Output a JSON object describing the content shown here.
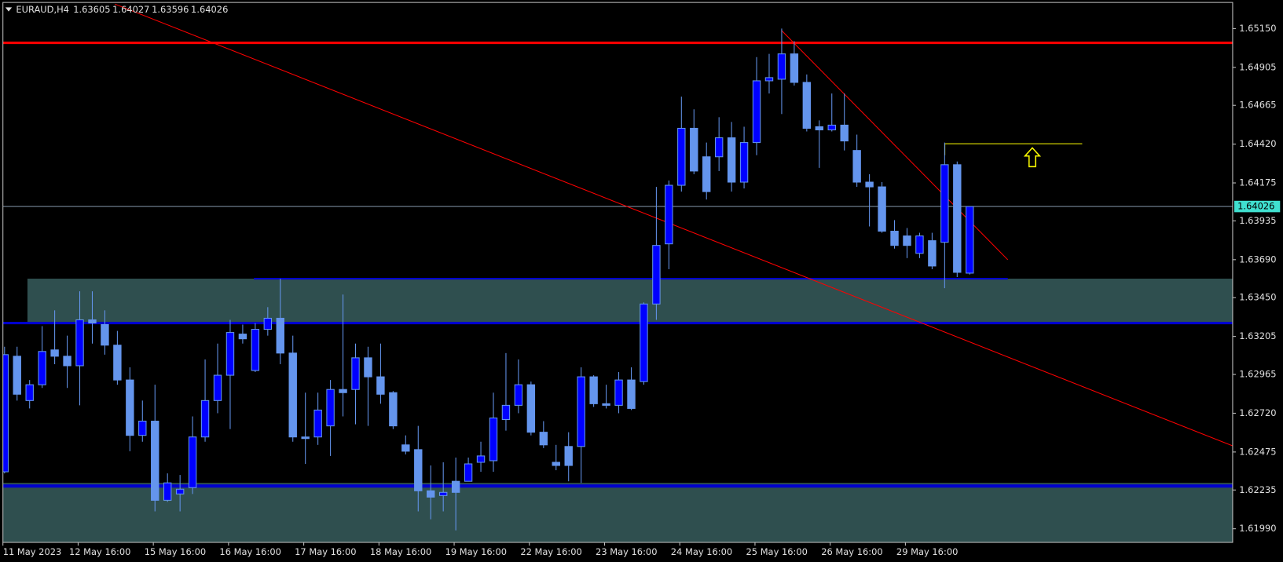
{
  "chart_data": {
    "type": "candlestick",
    "symbol": "EURAUD,H4",
    "candles": [
      [
        1.6235,
        1.6314,
        1.6234,
        1.6309
      ],
      [
        1.6308,
        1.6314,
        1.628,
        1.6284
      ],
      [
        1.628,
        1.6293,
        1.6275,
        1.629
      ],
      [
        1.629,
        1.6327,
        1.6288,
        1.6311
      ],
      [
        1.6312,
        1.6337,
        1.6303,
        1.6308
      ],
      [
        1.6308,
        1.6321,
        1.6288,
        1.6302
      ],
      [
        1.6302,
        1.6349,
        1.6277,
        1.6331
      ],
      [
        1.6331,
        1.6349,
        1.6316,
        1.6329
      ],
      [
        1.6328,
        1.6337,
        1.6309,
        1.6315
      ],
      [
        1.6315,
        1.6324,
        1.629,
        1.6293
      ],
      [
        1.6293,
        1.6301,
        1.6248,
        1.6258
      ],
      [
        1.6258,
        1.628,
        1.6254,
        1.6267
      ],
      [
        1.6267,
        1.629,
        1.621,
        1.6217
      ],
      [
        1.6217,
        1.6234,
        1.6216,
        1.6228
      ],
      [
        1.6221,
        1.6233,
        1.621,
        1.6224
      ],
      [
        1.6225,
        1.627,
        1.6221,
        1.6257
      ],
      [
        1.6257,
        1.6306,
        1.6254,
        1.628
      ],
      [
        1.628,
        1.6316,
        1.6272,
        1.6296
      ],
      [
        1.6296,
        1.6331,
        1.6262,
        1.6323
      ],
      [
        1.6322,
        1.6328,
        1.6316,
        1.6319
      ],
      [
        1.6299,
        1.6329,
        1.6298,
        1.6325
      ],
      [
        1.6325,
        1.6339,
        1.6321,
        1.6332
      ],
      [
        1.6332,
        1.6357,
        1.6303,
        1.631
      ],
      [
        1.631,
        1.6321,
        1.6254,
        1.6257
      ],
      [
        1.6257,
        1.6285,
        1.624,
        1.6256
      ],
      [
        1.6257,
        1.6285,
        1.6252,
        1.6274
      ],
      [
        1.6264,
        1.6293,
        1.6245,
        1.6287
      ],
      [
        1.6287,
        1.6347,
        1.627,
        1.6285
      ],
      [
        1.6287,
        1.6316,
        1.6265,
        1.6307
      ],
      [
        1.6307,
        1.6314,
        1.6264,
        1.6295
      ],
      [
        1.6295,
        1.6316,
        1.6278,
        1.6284
      ],
      [
        1.6285,
        1.6286,
        1.6262,
        1.6264
      ],
      [
        1.6252,
        1.6258,
        1.6246,
        1.6248
      ],
      [
        1.6249,
        1.6264,
        1.621,
        1.6223
      ],
      [
        1.6223,
        1.6239,
        1.6205,
        1.6219
      ],
      [
        1.622,
        1.6241,
        1.621,
        1.6222
      ],
      [
        1.6229,
        1.6244,
        1.6198,
        1.6222
      ],
      [
        1.6229,
        1.6244,
        1.6229,
        1.624
      ],
      [
        1.6241,
        1.6254,
        1.6235,
        1.6245
      ],
      [
        1.6242,
        1.6285,
        1.6235,
        1.6269
      ],
      [
        1.6268,
        1.631,
        1.6261,
        1.6277
      ],
      [
        1.6277,
        1.6306,
        1.6272,
        1.629
      ],
      [
        1.629,
        1.6292,
        1.6258,
        1.626
      ],
      [
        1.626,
        1.6267,
        1.625,
        1.6252
      ],
      [
        1.6241,
        1.6252,
        1.6236,
        1.6239
      ],
      [
        1.6251,
        1.626,
        1.6229,
        1.6239
      ],
      [
        1.6251,
        1.6301,
        1.6228,
        1.6295
      ],
      [
        1.6295,
        1.6296,
        1.6276,
        1.6278
      ],
      [
        1.6278,
        1.629,
        1.6275,
        1.6277
      ],
      [
        1.6277,
        1.6298,
        1.6272,
        1.6293
      ],
      [
        1.6293,
        1.6301,
        1.6274,
        1.6275
      ],
      [
        1.6292,
        1.6342,
        1.629,
        1.6341
      ],
      [
        1.6341,
        1.6415,
        1.6331,
        1.6378
      ],
      [
        1.6379,
        1.6419,
        1.6363,
        1.6416
      ],
      [
        1.6416,
        1.6472,
        1.6412,
        1.6452
      ],
      [
        1.6452,
        1.6464,
        1.6423,
        1.6425
      ],
      [
        1.6434,
        1.6443,
        1.6407,
        1.6412
      ],
      [
        1.6434,
        1.6459,
        1.6425,
        1.6446
      ],
      [
        1.6446,
        1.6456,
        1.6412,
        1.6418
      ],
      [
        1.6418,
        1.6453,
        1.6414,
        1.6443
      ],
      [
        1.6443,
        1.6497,
        1.6435,
        1.6482
      ],
      [
        1.6482,
        1.6499,
        1.6474,
        1.6484
      ],
      [
        1.6483,
        1.6515,
        1.6461,
        1.6499
      ],
      [
        1.6499,
        1.6507,
        1.6479,
        1.6481
      ],
      [
        1.6481,
        1.6486,
        1.645,
        1.6452
      ],
      [
        1.6453,
        1.6457,
        1.6427,
        1.6451
      ],
      [
        1.6451,
        1.6474,
        1.645,
        1.6454
      ],
      [
        1.6454,
        1.6474,
        1.6438,
        1.6444
      ],
      [
        1.6438,
        1.6448,
        1.6415,
        1.6418
      ],
      [
        1.6418,
        1.6423,
        1.639,
        1.6415
      ],
      [
        1.6415,
        1.6418,
        1.6386,
        1.6387
      ],
      [
        1.6387,
        1.6394,
        1.6376,
        1.6378
      ],
      [
        1.6384,
        1.6389,
        1.637,
        1.6378
      ],
      [
        1.6373,
        1.6386,
        1.637,
        1.6384
      ],
      [
        1.6381,
        1.6386,
        1.6363,
        1.6365
      ],
      [
        1.638,
        1.6443,
        1.6351,
        1.6429
      ],
      [
        1.6429,
        1.6431,
        1.6358,
        1.6361
      ],
      [
        1.63605,
        1.64027,
        1.63596,
        1.64026
      ]
    ],
    "categories": [
      "11 May 2023",
      null,
      null,
      null,
      null,
      null,
      "12 May 16:00",
      null,
      null,
      null,
      null,
      null,
      "15 May 16:00",
      null,
      null,
      null,
      null,
      null,
      "16 May 16:00",
      null,
      null,
      null,
      null,
      null,
      "17 May 16:00",
      null,
      null,
      null,
      null,
      null,
      "18 May 16:00",
      null,
      null,
      null,
      null,
      null,
      "19 May 16:00",
      null,
      null,
      null,
      null,
      null,
      "22 May 16:00",
      null,
      null,
      null,
      null,
      null,
      "23 May 16:00",
      null,
      null,
      null,
      null,
      null,
      "24 May 16:00",
      null,
      null,
      null,
      null,
      null,
      "25 May 16:00",
      null,
      null,
      null,
      null,
      null,
      "26 May 16:00",
      null,
      null,
      null,
      null,
      null,
      "29 May 16:00",
      null,
      null,
      null,
      null,
      null
    ],
    "ylim": [
      1.61904,
      1.65315
    ],
    "yticks": [
      {
        "value": 1.6515,
        "label": "1.65150"
      },
      {
        "value": 1.64905,
        "label": "1.64905"
      },
      {
        "value": 1.64665,
        "label": "1.64665"
      },
      {
        "value": 1.6442,
        "label": "1.64420"
      },
      {
        "value": 1.64175,
        "label": "1.64175"
      },
      {
        "value": 1.63935,
        "label": "1.63935"
      },
      {
        "value": 1.6369,
        "label": "1.63690"
      },
      {
        "value": 1.6345,
        "label": "1.63450"
      },
      {
        "value": 1.63205,
        "label": "1.63205"
      },
      {
        "value": 1.62965,
        "label": "1.62965"
      },
      {
        "value": 1.6272,
        "label": "1.62720"
      },
      {
        "value": 1.62475,
        "label": "1.62475"
      },
      {
        "value": 1.62235,
        "label": "1.62235"
      },
      {
        "value": 1.6199,
        "label": "1.61990"
      }
    ],
    "bull_color": "#0000ff",
    "bear_color": "#6495ed",
    "zones": [
      {
        "from": 1.6329,
        "to": 1.6357,
        "color": "#2f4f4f"
      },
      {
        "from": 1.619,
        "to": 1.6228,
        "color": "#2f4f4f"
      }
    ],
    "levels": [
      {
        "price": 1.6506,
        "color": "#ff0000"
      },
      {
        "price": 1.6357,
        "color": "#0000cd"
      },
      {
        "price": 1.6329,
        "color": "#0000cd"
      },
      {
        "price": 1.6226,
        "color": "#0000cd"
      }
    ]
  }
}
